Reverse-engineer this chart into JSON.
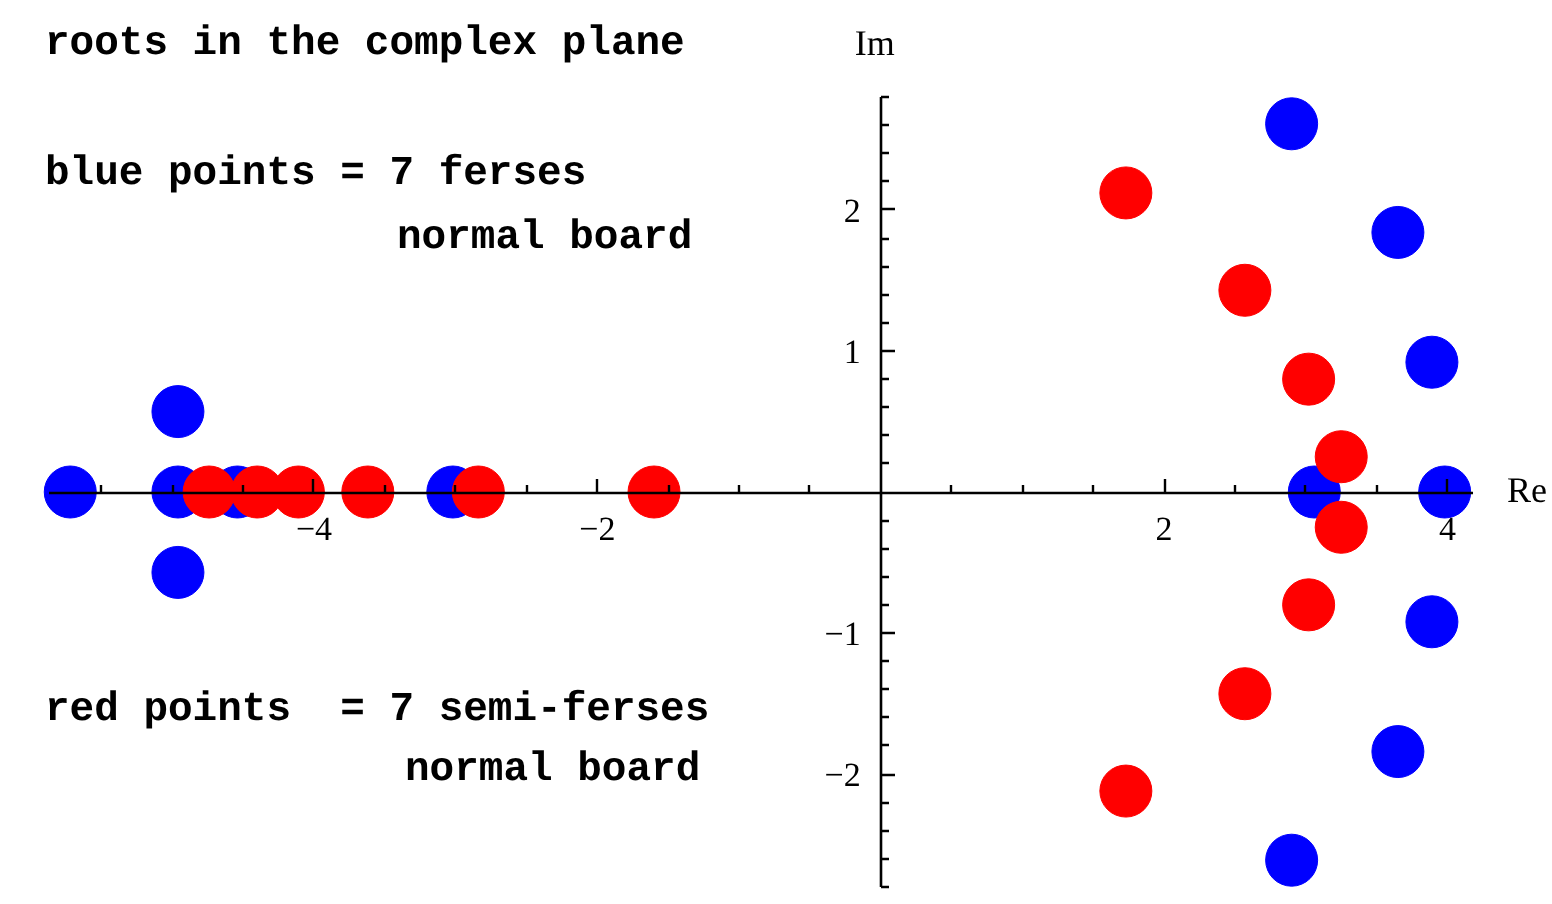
{
  "chart_data": {
    "type": "scatter",
    "title": "roots in the complex plane",
    "xlabel": "Re",
    "ylabel": "Im",
    "annotations": [
      "blue points = 7 ferses",
      "normal board",
      "red points  = 7 semi-ferses",
      "normal board"
    ],
    "marker": "circle",
    "xlim": [
      -5.87,
      4.18
    ],
    "ylim": [
      -2.8,
      2.8
    ],
    "xticks": [
      {
        "value": -5.5,
        "label": null
      },
      {
        "value": -5,
        "label": null
      },
      {
        "value": -4.5,
        "label": null
      },
      {
        "value": -4,
        "label": "−4"
      },
      {
        "value": -3.5,
        "label": null
      },
      {
        "value": -3,
        "label": null
      },
      {
        "value": -2.5,
        "label": null
      },
      {
        "value": -2,
        "label": "−2"
      },
      {
        "value": -1.5,
        "label": null
      },
      {
        "value": -1,
        "label": null
      },
      {
        "value": -0.5,
        "label": null
      },
      {
        "value": 0.5,
        "label": null
      },
      {
        "value": 1,
        "label": null
      },
      {
        "value": 1.5,
        "label": null
      },
      2,
      {
        "value": 2.5,
        "label": null
      },
      {
        "value": 3,
        "label": null
      },
      {
        "value": 3.5,
        "label": null
      },
      4
    ],
    "yticks": [
      {
        "value": -2.8,
        "label": null
      },
      {
        "value": -2.6,
        "label": null
      },
      {
        "value": -2.4,
        "label": null
      },
      {
        "value": -2.2,
        "label": null
      },
      {
        "value": -2,
        "label": "−2"
      },
      {
        "value": -1.8,
        "label": null
      },
      {
        "value": -1.6,
        "label": null
      },
      {
        "value": -1.4,
        "label": null
      },
      {
        "value": -1.2,
        "label": null
      },
      {
        "value": -1,
        "label": "−1"
      },
      {
        "value": -0.8,
        "label": null
      },
      {
        "value": -0.6,
        "label": null
      },
      {
        "value": -0.4,
        "label": null
      },
      {
        "value": -0.2,
        "label": null
      },
      {
        "value": 0.2,
        "label": null
      },
      {
        "value": 0.4,
        "label": null
      },
      {
        "value": 0.6,
        "label": null
      },
      {
        "value": 0.8,
        "label": null
      },
      1,
      {
        "value": 1.2,
        "label": null
      },
      {
        "value": 1.4,
        "label": null
      },
      {
        "value": 1.6,
        "label": null
      },
      {
        "value": 1.8,
        "label": null
      },
      2,
      {
        "value": 2.2,
        "label": null
      },
      {
        "value": 2.4,
        "label": null
      },
      {
        "value": 2.6,
        "label": null
      },
      {
        "value": 2.8,
        "label": null
      }
    ],
    "series": [
      {
        "color": "#0000ff",
        "x": [
          -5.72,
          -4.96,
          -4.96,
          -4.96,
          -4.54,
          -3.02,
          3.06,
          3.98,
          2.9,
          2.9,
          3.65,
          3.65,
          3.89,
          3.89
        ],
        "values": [
          0,
          0,
          0.57,
          -0.57,
          0,
          0,
          0,
          0,
          2.61,
          -2.61,
          1.84,
          -1.84,
          0.92,
          -0.92
        ]
      },
      {
        "color": "#ff0000",
        "x": [
          -4.74,
          -4.4,
          -4.11,
          -3.62,
          -2.84,
          -1.6,
          1.73,
          1.73,
          2.57,
          2.57,
          3.02,
          3.02,
          3.25,
          3.25
        ],
        "values": [
          0,
          0,
          0,
          0,
          0,
          0,
          2.12,
          -2.12,
          1.43,
          -1.43,
          0.8,
          -0.8,
          0.25,
          -0.25
        ]
      }
    ]
  }
}
